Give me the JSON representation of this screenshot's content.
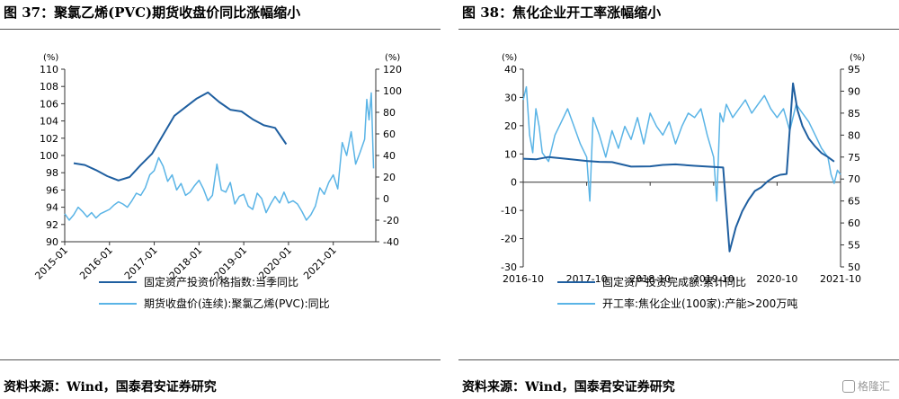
{
  "colors": {
    "dark": "#1f5fa0",
    "light": "#5ab4e6",
    "axis": "#333333"
  },
  "watermark": {
    "text": "格隆汇"
  },
  "chart_data": [
    {
      "type": "line",
      "title": "图 37：聚氯乙烯(PVC)期货收盘价同比涨幅缩小",
      "source": "资料来源：Wind，国泰君安证券研究",
      "left_unit": "(%)",
      "right_unit": "(%)",
      "left_ylim": [
        90,
        110
      ],
      "left_ticks": [
        90,
        92,
        94,
        96,
        98,
        100,
        102,
        104,
        106,
        108,
        110
      ],
      "right_ylim": [
        -40,
        120
      ],
      "right_ticks": [
        -40,
        -20,
        0,
        20,
        40,
        60,
        80,
        100,
        120
      ],
      "x_range": [
        2015.0,
        2021.95
      ],
      "x_ticks": [
        {
          "pos": 2015.0,
          "label": "2015-01"
        },
        {
          "pos": 2016.0,
          "label": "2016-01"
        },
        {
          "pos": 2017.0,
          "label": "2017-01"
        },
        {
          "pos": 2018.0,
          "label": "2018-01"
        },
        {
          "pos": 2019.0,
          "label": "2019-01"
        },
        {
          "pos": 2020.0,
          "label": "2020-01"
        },
        {
          "pos": 2021.0,
          "label": "2021-01"
        }
      ],
      "series": [
        {
          "name": "固定资产投资价格指数:当季同比",
          "axis": "left",
          "color_key": "dark",
          "x": [
            2015.2,
            2015.45,
            2015.7,
            2015.95,
            2016.2,
            2016.45,
            2016.7,
            2016.95,
            2017.2,
            2017.45,
            2017.7,
            2017.95,
            2018.2,
            2018.45,
            2018.7,
            2018.95,
            2019.2,
            2019.45,
            2019.7,
            2019.95
          ],
          "values": [
            99.1,
            98.9,
            98.3,
            97.6,
            97.1,
            97.5,
            98.9,
            100.2,
            102.4,
            104.6,
            105.6,
            106.6,
            107.3,
            106.2,
            105.3,
            105.1,
            104.2,
            103.5,
            103.2,
            101.3
          ]
        },
        {
          "name": "期货收盘价(连续):聚氯乙烯(PVC):同比",
          "axis": "right",
          "color_key": "light",
          "x": [
            2015.0,
            2015.1,
            2015.2,
            2015.3,
            2015.4,
            2015.5,
            2015.6,
            2015.7,
            2015.8,
            2015.9,
            2016.0,
            2016.1,
            2016.2,
            2016.3,
            2016.4,
            2016.5,
            2016.6,
            2016.7,
            2016.8,
            2016.9,
            2017.0,
            2017.1,
            2017.2,
            2017.3,
            2017.4,
            2017.5,
            2017.6,
            2017.7,
            2017.8,
            2017.9,
            2018.0,
            2018.1,
            2018.2,
            2018.3,
            2018.4,
            2018.5,
            2018.6,
            2018.7,
            2018.8,
            2018.9,
            2019.0,
            2019.1,
            2019.2,
            2019.3,
            2019.4,
            2019.5,
            2019.6,
            2019.7,
            2019.8,
            2019.9,
            2020.0,
            2020.1,
            2020.2,
            2020.3,
            2020.4,
            2020.5,
            2020.6,
            2020.7,
            2020.8,
            2020.9,
            2021.0,
            2021.1,
            2021.2,
            2021.3,
            2021.4,
            2021.5,
            2021.6,
            2021.7,
            2021.75,
            2021.8,
            2021.85,
            2021.9
          ],
          "values": [
            -14,
            -20,
            -15,
            -8,
            -12,
            -17,
            -13,
            -18,
            -14,
            -12,
            -10,
            -6,
            -3,
            -5,
            -8,
            -2,
            5,
            3,
            10,
            22,
            26,
            38,
            30,
            16,
            22,
            8,
            14,
            3,
            6,
            12,
            17,
            9,
            -2,
            3,
            32,
            8,
            6,
            15,
            -5,
            2,
            4,
            -7,
            -10,
            5,
            0,
            -13,
            -5,
            2,
            -4,
            6,
            -4,
            -2,
            -5,
            -12,
            -20,
            -15,
            -7,
            10,
            4,
            15,
            22,
            9,
            52,
            40,
            62,
            32,
            43,
            55,
            92,
            73,
            98,
            28
          ]
        }
      ],
      "legend": [
        "固定资产投资价格指数:当季同比",
        "期货收盘价(连续):聚氯乙烯(PVC):同比"
      ]
    },
    {
      "type": "line",
      "title": "图 38：焦化企业开工率涨幅缩小",
      "source": "资料来源：Wind，国泰君安证券研究",
      "left_unit": "(%)",
      "right_unit": "(%)",
      "left_ylim": [
        -30,
        40
      ],
      "left_ticks": [
        -30,
        -20,
        -10,
        0,
        10,
        20,
        30,
        40
      ],
      "right_ylim": [
        50,
        95
      ],
      "right_ticks": [
        50,
        55,
        60,
        65,
        70,
        75,
        80,
        85,
        90,
        95
      ],
      "x_range": [
        2016.8,
        2021.8
      ],
      "x_ticks": [
        {
          "pos": 2016.8,
          "label": "2016-10"
        },
        {
          "pos": 2017.8,
          "label": "2017-10"
        },
        {
          "pos": 2018.8,
          "label": "2018-10"
        },
        {
          "pos": 2019.8,
          "label": "2019-10"
        },
        {
          "pos": 2020.8,
          "label": "2020-10"
        },
        {
          "pos": 2021.8,
          "label": "2021-10"
        }
      ],
      "series": [
        {
          "name": "固定资产投资完成额:累计同比",
          "axis": "left",
          "color_key": "dark",
          "x": [
            2016.8,
            2017.0,
            2017.2,
            2017.5,
            2017.8,
            2018.0,
            2018.2,
            2018.5,
            2018.8,
            2019.0,
            2019.2,
            2019.5,
            2019.8,
            2019.95,
            2020.05,
            2020.15,
            2020.25,
            2020.35,
            2020.45,
            2020.55,
            2020.65,
            2020.75,
            2020.85,
            2020.95,
            2021.05,
            2021.12,
            2021.2,
            2021.3,
            2021.4,
            2021.5,
            2021.6,
            2021.7
          ],
          "values": [
            8.3,
            8.1,
            8.9,
            8.2,
            7.5,
            7.2,
            7.1,
            5.5,
            5.6,
            6.1,
            6.3,
            5.8,
            5.4,
            5.2,
            -24.5,
            -16,
            -10.3,
            -6.3,
            -3.1,
            -1.8,
            0.3,
            1.8,
            2.6,
            2.9,
            35.0,
            25.6,
            19.9,
            15.4,
            12.6,
            10.3,
            8.9,
            7.3
          ]
        },
        {
          "name": "开工率:焦化企业(100家):产能>200万吨",
          "axis": "right",
          "color_key": "light",
          "x": [
            2016.8,
            2016.85,
            2016.9,
            2016.95,
            2017.0,
            2017.05,
            2017.1,
            2017.2,
            2017.3,
            2017.4,
            2017.5,
            2017.6,
            2017.7,
            2017.8,
            2017.85,
            2017.9,
            2018.0,
            2018.1,
            2018.2,
            2018.3,
            2018.4,
            2018.5,
            2018.6,
            2018.7,
            2018.8,
            2018.9,
            2019.0,
            2019.1,
            2019.2,
            2019.3,
            2019.4,
            2019.5,
            2019.6,
            2019.7,
            2019.8,
            2019.85,
            2019.9,
            2019.95,
            2020.0,
            2020.1,
            2020.2,
            2020.3,
            2020.4,
            2020.5,
            2020.6,
            2020.7,
            2020.8,
            2020.9,
            2021.0,
            2021.1,
            2021.2,
            2021.3,
            2021.4,
            2021.5,
            2021.6,
            2021.65,
            2021.7,
            2021.75,
            2021.8
          ],
          "values": [
            88,
            91,
            80,
            76,
            86,
            82,
            76,
            74,
            80,
            83,
            86,
            82,
            78,
            75,
            65,
            84,
            80,
            75,
            81,
            77,
            82,
            79,
            84,
            78,
            85,
            82,
            80,
            83,
            78,
            82,
            85,
            84,
            86,
            80,
            75,
            65,
            85,
            83,
            87,
            84,
            86,
            88,
            85,
            87,
            89,
            86,
            84,
            86,
            81,
            87,
            85,
            83,
            80,
            77,
            75,
            71,
            69,
            72,
            71
          ]
        }
      ],
      "legend": [
        "固定资产投资完成额:累计同比",
        "开工率:焦化企业(100家):产能>200万吨"
      ]
    }
  ]
}
